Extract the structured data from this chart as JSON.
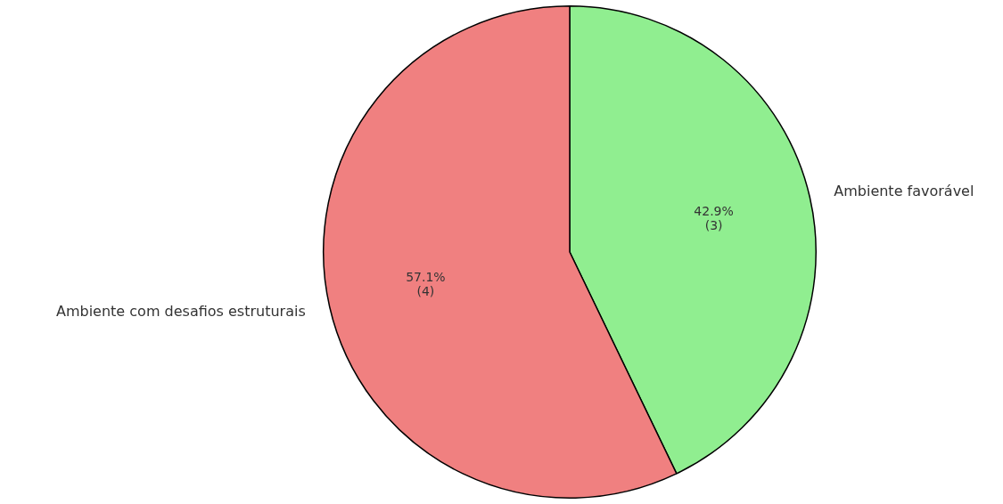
{
  "chart_data": {
    "type": "pie",
    "categories": [
      "Ambiente favorável",
      "Ambiente com desafios estruturais"
    ],
    "values": [
      3,
      4
    ],
    "colors": [
      "#90ee90",
      "#f08080"
    ],
    "value_labels": [
      "42.9%\n(3)",
      "57.1%\n(4)"
    ]
  }
}
